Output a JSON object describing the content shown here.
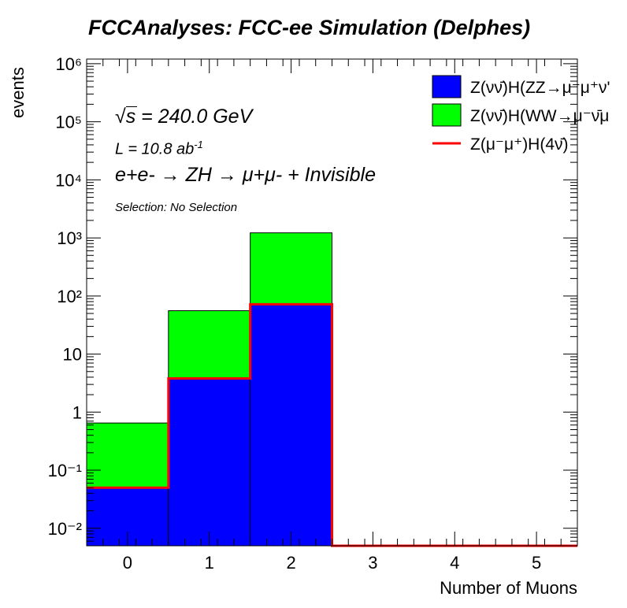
{
  "header": {
    "title": "FCCAnalyses: FCC-ee Simulation (Delphes)"
  },
  "annotations": {
    "energy": "s = 240.0 GeV",
    "lumi": "L = 10.8 ab",
    "lumi_exp": "-1",
    "process": "e+e- → ZH → μ+μ- + Invisible",
    "selection": "Selection: No Selection"
  },
  "chart_data": {
    "type": "bar",
    "stacked": true,
    "log_y": true,
    "xlabel": "Number of Muons",
    "ylabel": "events",
    "xlim": [
      -0.5,
      5.5
    ],
    "ylim": [
      0.005,
      1200000
    ],
    "bin_edges": [
      -0.5,
      0.5,
      1.5,
      2.5,
      3.5,
      4.5,
      5.5
    ],
    "x_ticks": [
      0,
      1,
      2,
      3,
      4,
      5
    ],
    "y_ticks": [
      "10⁻²",
      "10⁻¹",
      "1",
      "10",
      "10²",
      "10³",
      "10⁴",
      "10⁵",
      "10⁶"
    ],
    "series": [
      {
        "name": "Z(νν̄)H(ZZ→μ⁻μ⁺ν'",
        "kind": "fill",
        "color": "#0000ff",
        "values": [
          0.05,
          3.8,
          72,
          0,
          0,
          0
        ]
      },
      {
        "name": "Z(νν̄)H(WW→μ⁻ν̄μ",
        "kind": "fill",
        "color": "#00ff00",
        "values": [
          0.6,
          52,
          1150,
          0,
          0,
          0
        ]
      },
      {
        "name": "Z(μ⁻μ⁺)H(4ν̄)",
        "kind": "line",
        "color": "#ff0000",
        "values": [
          0.05,
          3.8,
          72,
          0,
          0,
          0
        ]
      }
    ],
    "legend_position": "top-right",
    "grid": false
  }
}
